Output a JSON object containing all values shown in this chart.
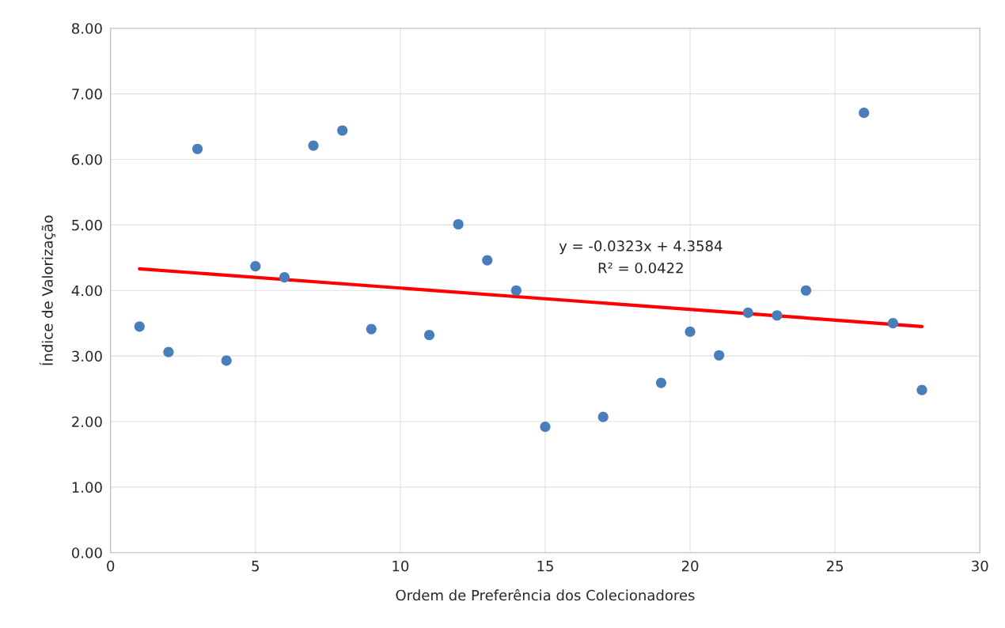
{
  "chart_data": {
    "type": "scatter",
    "xlabel": "Ordem de Preferência dos Colecionadores",
    "ylabel": "Índice de Valorização",
    "xlim": [
      0,
      30
    ],
    "xticks": [
      0,
      5,
      10,
      15,
      20,
      25,
      30
    ],
    "ylim": [
      0,
      8
    ],
    "yticks": [
      {
        "value": 0,
        "label": "0.00"
      },
      {
        "value": 1,
        "label": "1.00"
      },
      {
        "value": 2,
        "label": "2.00"
      },
      {
        "value": 3,
        "label": "3.00"
      },
      {
        "value": 4,
        "label": "4.00"
      },
      {
        "value": 5,
        "label": "5.00"
      },
      {
        "value": 6,
        "label": "6.00"
      },
      {
        "value": 7,
        "label": "7.00"
      },
      {
        "value": 8,
        "label": "8.00"
      }
    ],
    "grid": true,
    "legend": false,
    "series": [
      {
        "type": "scatter",
        "color": "#4a7ebb",
        "marker": "circle",
        "x": [
          1,
          2,
          3,
          4,
          5,
          6,
          7,
          8,
          9,
          11,
          12,
          13,
          14,
          15,
          17,
          19,
          20,
          21,
          22,
          23,
          24,
          26,
          27,
          28
        ],
        "values": [
          3.45,
          3.06,
          6.16,
          2.93,
          4.37,
          4.2,
          6.21,
          6.44,
          3.41,
          3.32,
          5.01,
          4.46,
          4.0,
          1.92,
          2.07,
          2.59,
          3.37,
          3.01,
          3.66,
          3.62,
          4.0,
          6.71,
          3.5,
          2.48
        ]
      },
      {
        "type": "line",
        "color": "#ff0000",
        "line_style": "solid",
        "x": [
          1,
          28
        ],
        "values": [
          4.33,
          3.45
        ]
      }
    ],
    "annotations": [
      "y = -0.0323x + 4.3584",
      "R² = 0.0422"
    ]
  }
}
